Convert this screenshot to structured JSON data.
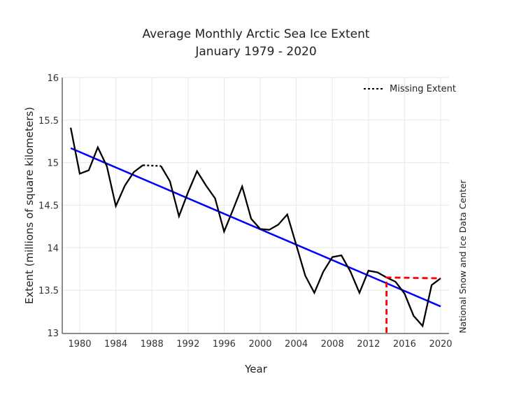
{
  "chart_data": {
    "type": "line",
    "title": "Average Monthly Arctic Sea Ice Extent",
    "subtitle": "January 1979 - 2020",
    "xlabel": "Year",
    "ylabel": "Extent (millions of square kilometers)",
    "credit": "National Snow and Ice Data Center",
    "xlim": [
      1978,
      2021
    ],
    "ylim": [
      13,
      16
    ],
    "xticks": [
      1980,
      1984,
      1988,
      1992,
      1996,
      2000,
      2004,
      2008,
      2012,
      2016,
      2020
    ],
    "yticks": [
      13,
      13.5,
      14,
      14.5,
      15,
      15.5,
      16
    ],
    "ytick_labels": [
      "13",
      "13.5",
      "14",
      "14.5",
      "15",
      "15.5",
      "16"
    ],
    "grid": true,
    "legend": {
      "position": "top-right",
      "entries": [
        {
          "label": "Missing Extent",
          "style": "dotted",
          "color": "#000000"
        }
      ]
    },
    "series": [
      {
        "name": "Extent",
        "color": "#000000",
        "x": [
          1979,
          1980,
          1981,
          1982,
          1983,
          1984,
          1985,
          1986,
          1987,
          1989,
          1990,
          1991,
          1992,
          1993,
          1994,
          1995,
          1996,
          1997,
          1998,
          1999,
          2000,
          2001,
          2002,
          2003,
          2004,
          2005,
          2006,
          2007,
          2008,
          2009,
          2010,
          2011,
          2012,
          2013,
          2014,
          2015,
          2016,
          2017,
          2018,
          2019,
          2020
        ],
        "values": [
          15.41,
          14.87,
          14.91,
          15.18,
          14.96,
          14.49,
          14.73,
          14.89,
          14.97,
          14.96,
          14.78,
          14.37,
          14.65,
          14.9,
          14.73,
          14.58,
          14.19,
          14.45,
          14.72,
          14.34,
          14.22,
          14.21,
          14.27,
          14.39,
          14.03,
          13.67,
          13.47,
          13.72,
          13.89,
          13.91,
          13.72,
          13.47,
          13.73,
          13.71,
          13.65,
          13.6,
          13.46,
          13.2,
          13.08,
          13.56,
          13.64
        ]
      },
      {
        "name": "Missing Extent",
        "color": "#000000",
        "style": "dotted",
        "x": [
          1987,
          1989
        ],
        "values": [
          14.97,
          14.96
        ]
      },
      {
        "name": "Trend",
        "color": "#0000ff",
        "x": [
          1979,
          2020
        ],
        "values": [
          15.17,
          13.31
        ]
      },
      {
        "name": "2014 reference",
        "color": "#ff0000",
        "style": "dashed",
        "x": [
          2014,
          2014,
          2020
        ],
        "values": [
          13.0,
          13.65,
          13.64
        ]
      }
    ]
  }
}
